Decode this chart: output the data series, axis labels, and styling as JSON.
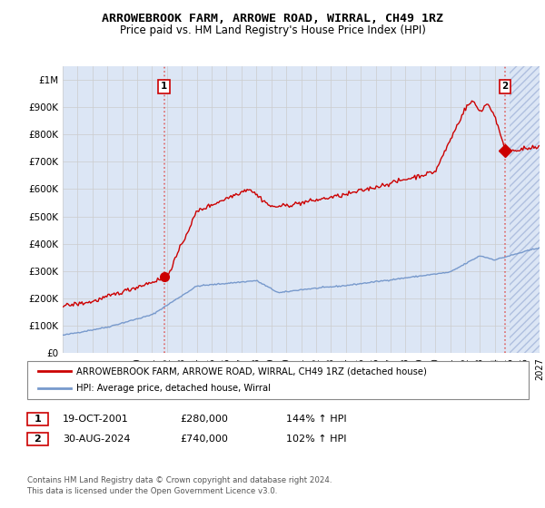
{
  "title": "ARROWEBROOK FARM, ARROWE ROAD, WIRRAL, CH49 1RZ",
  "subtitle": "Price paid vs. HM Land Registry's House Price Index (HPI)",
  "background_color": "#ffffff",
  "grid_color": "#cccccc",
  "plot_bg_color": "#dce6f5",
  "red_line_color": "#cc0000",
  "blue_line_color": "#7799cc",
  "vline_color": "#dd6666",
  "sale1": {
    "date": "19-OCT-2001",
    "price": 280000,
    "label": "144% ↑ HPI",
    "num": "1",
    "year": 2001.8
  },
  "sale2": {
    "date": "30-AUG-2024",
    "price": 740000,
    "label": "102% ↑ HPI",
    "num": "2",
    "year": 2024.67
  },
  "legend_label_red": "ARROWEBROOK FARM, ARROWE ROAD, WIRRAL, CH49 1RZ (detached house)",
  "legend_label_blue": "HPI: Average price, detached house, Wirral",
  "footer": "Contains HM Land Registry data © Crown copyright and database right 2024.\nThis data is licensed under the Open Government Licence v3.0.",
  "ylim": [
    0,
    1050000
  ],
  "yticks": [
    0,
    100000,
    200000,
    300000,
    400000,
    500000,
    600000,
    700000,
    800000,
    900000,
    1000000
  ],
  "ytick_labels": [
    "£0",
    "£100K",
    "£200K",
    "£300K",
    "£400K",
    "£500K",
    "£600K",
    "£700K",
    "£800K",
    "£900K",
    "£1M"
  ],
  "xlim": [
    1995,
    2027
  ],
  "hatch_start": 2025,
  "year_start": 1995,
  "year_end": 2026
}
